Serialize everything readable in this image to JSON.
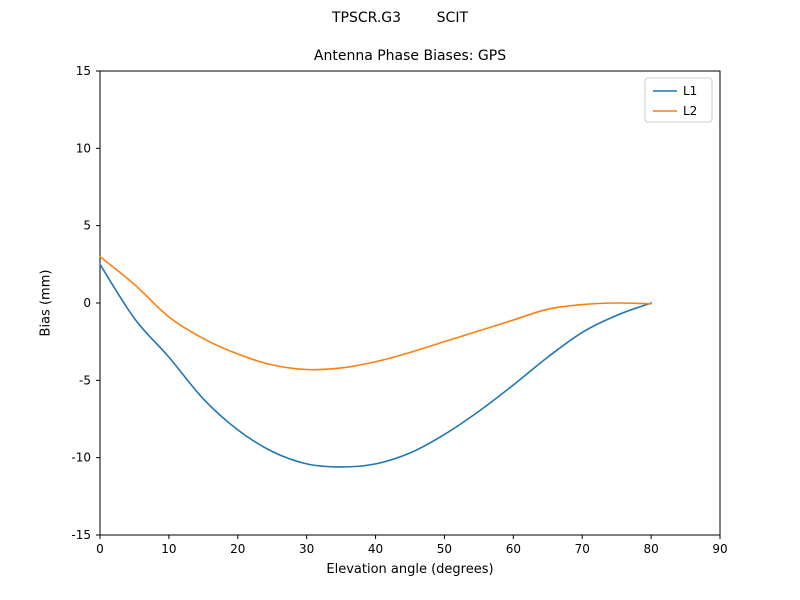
{
  "figure": {
    "suptitle": "TPSCR.G3        SCIT",
    "background": "#ffffff"
  },
  "chart_data": {
    "type": "line",
    "title": "Antenna Phase Biases: GPS",
    "xlabel": "Elevation angle (degrees)",
    "ylabel": "Bias (mm)",
    "xlim": [
      0,
      90
    ],
    "ylim": [
      -15,
      15
    ],
    "xticks": [
      0,
      10,
      20,
      30,
      40,
      50,
      60,
      70,
      80,
      90
    ],
    "yticks": [
      -15,
      -10,
      -5,
      0,
      5,
      10,
      15
    ],
    "grid": false,
    "legend_position": "upper right",
    "x": [
      0,
      5,
      10,
      15,
      20,
      25,
      30,
      35,
      40,
      45,
      50,
      55,
      60,
      65,
      70,
      75,
      80
    ],
    "series": [
      {
        "name": "L1",
        "color": "#1f77b4",
        "values": [
          2.5,
          -1.0,
          -3.5,
          -6.2,
          -8.2,
          -9.6,
          -10.4,
          -10.6,
          -10.4,
          -9.7,
          -8.5,
          -7.0,
          -5.3,
          -3.5,
          -1.9,
          -0.8,
          0.0
        ]
      },
      {
        "name": "L2",
        "color": "#ff7f0e",
        "values": [
          3.0,
          1.2,
          -0.9,
          -2.3,
          -3.3,
          -4.0,
          -4.3,
          -4.2,
          -3.8,
          -3.2,
          -2.5,
          -1.8,
          -1.1,
          -0.4,
          -0.1,
          0.0,
          -0.05
        ]
      }
    ]
  }
}
